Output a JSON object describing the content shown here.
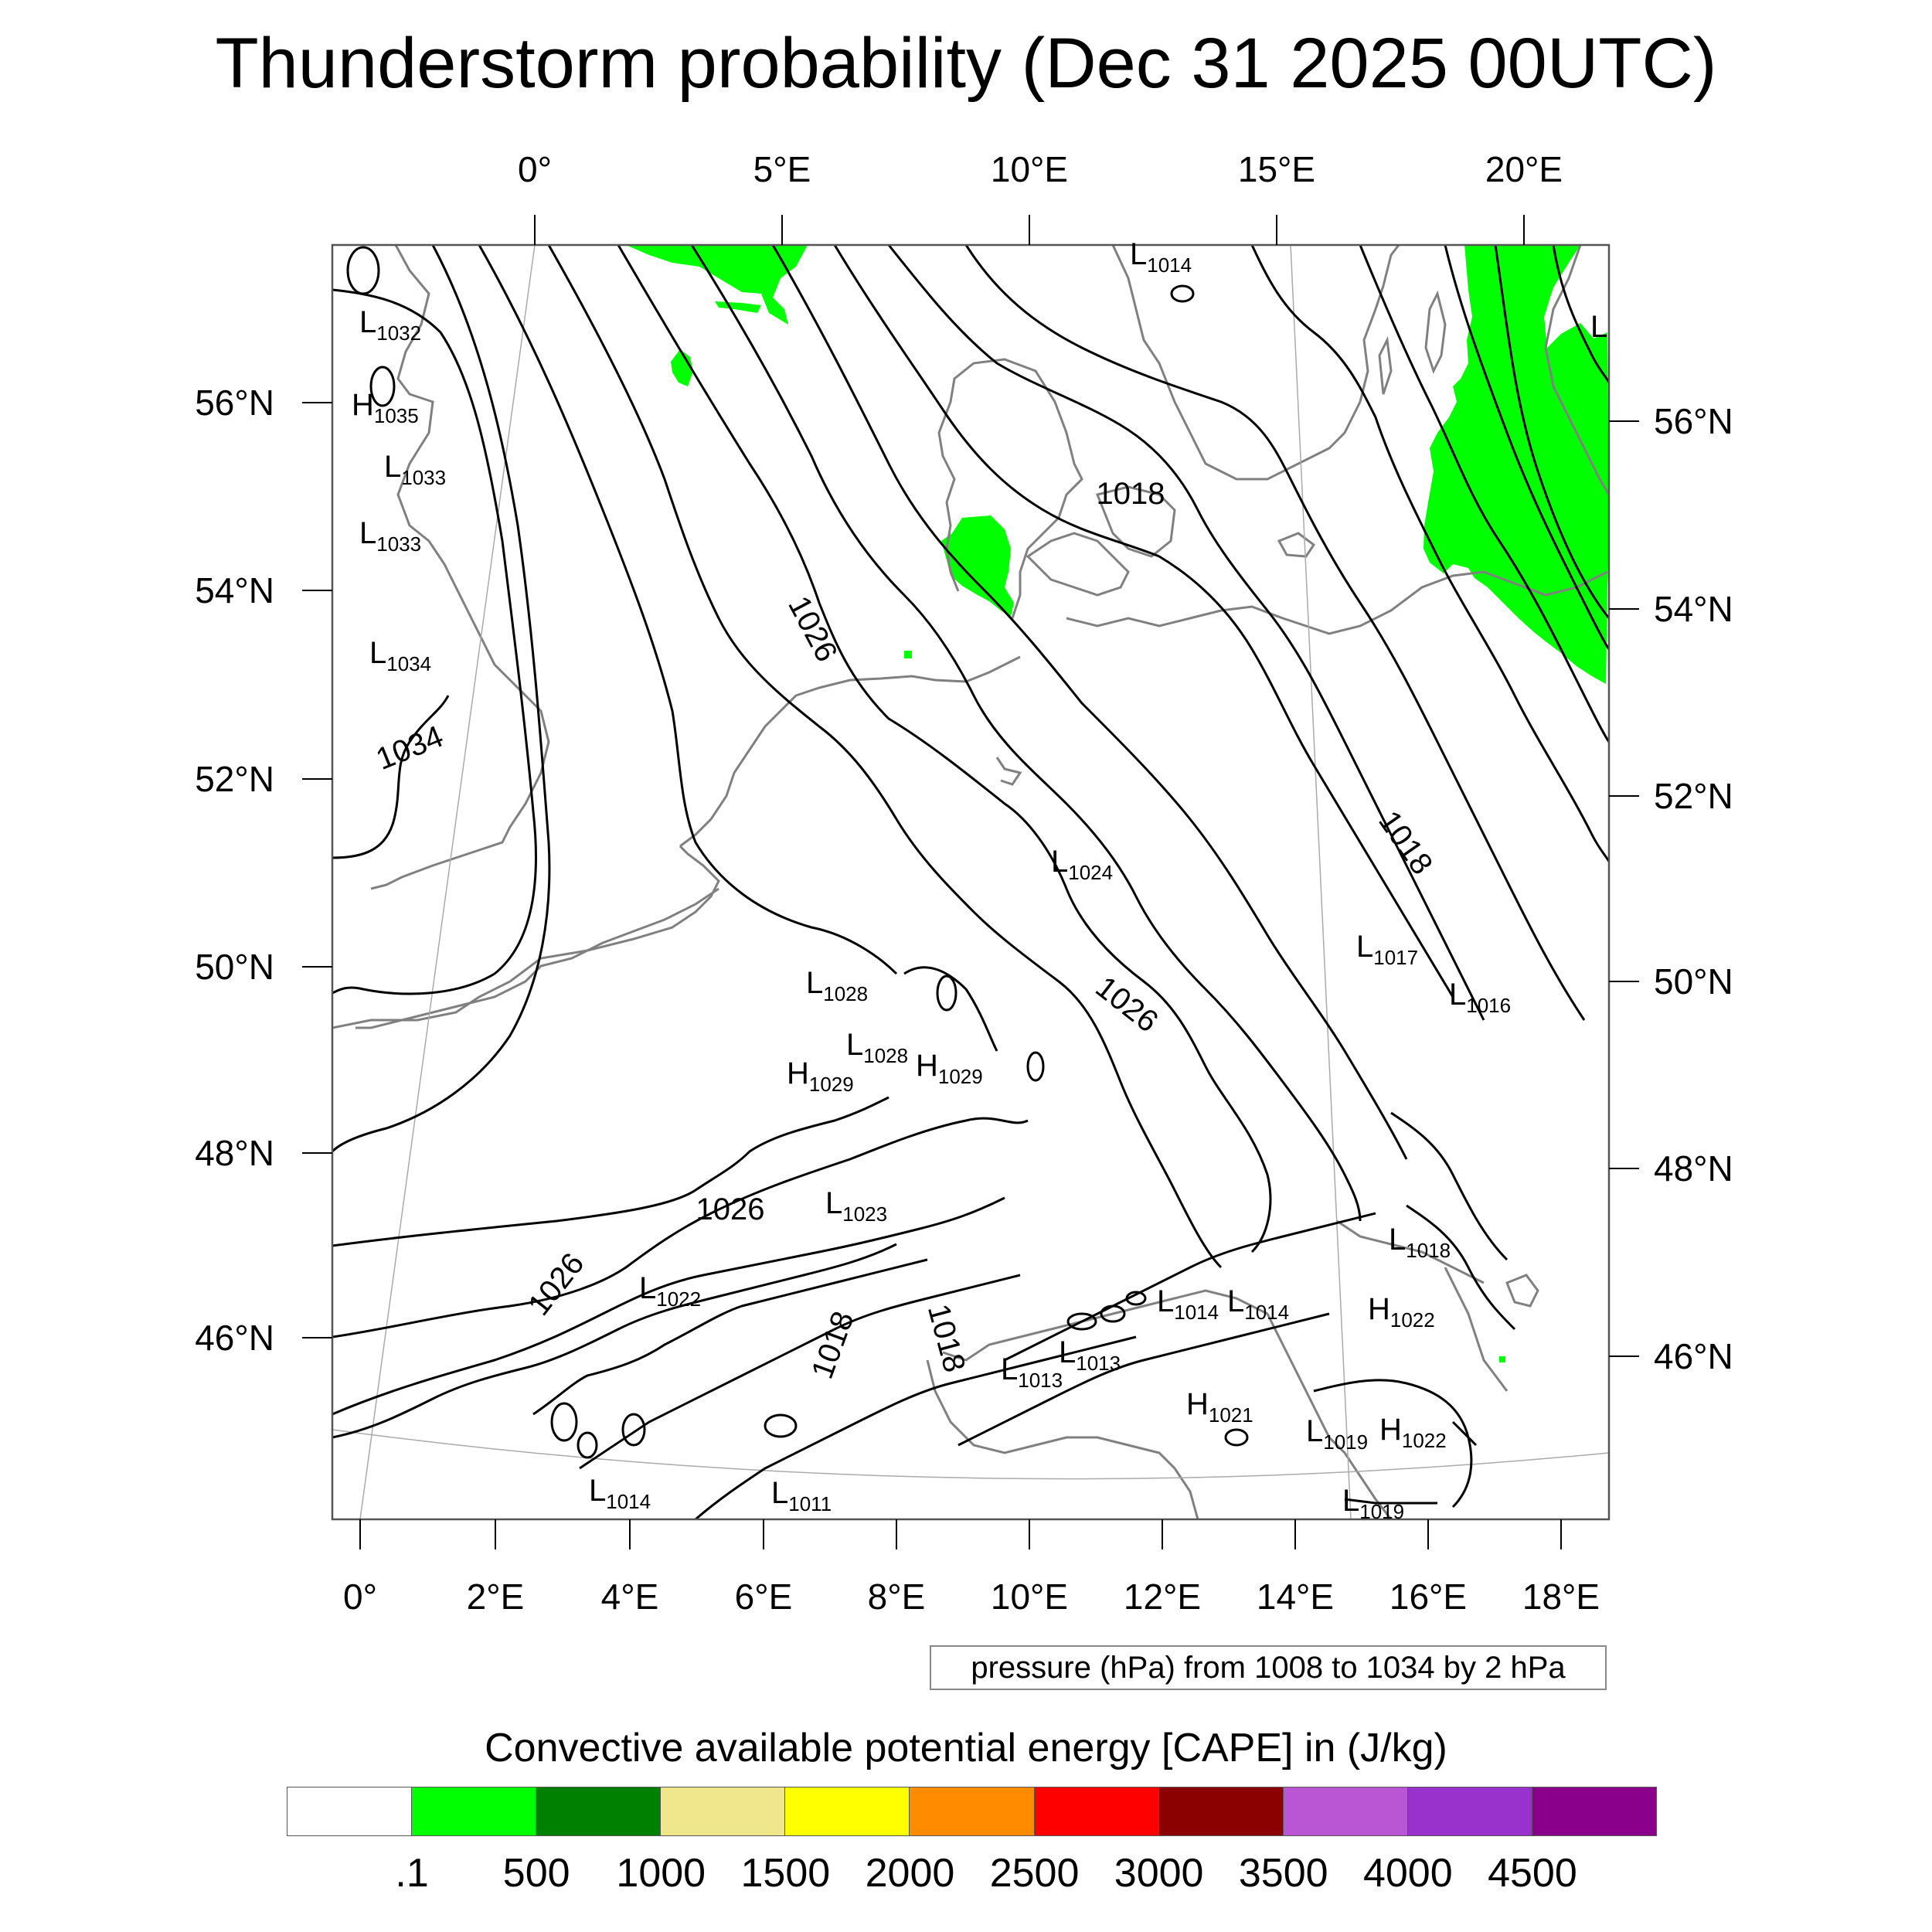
{
  "title": "Thunderstorm probability (Dec 31 2025 00UTC)",
  "top_axis_labels": [
    "0°",
    "5°E",
    "10°E",
    "15°E",
    "20°E"
  ],
  "left_axis_labels": [
    "56°N",
    "54°N",
    "52°N",
    "50°N",
    "48°N",
    "46°N"
  ],
  "right_axis_labels": [
    "56°N",
    "54°N",
    "52°N",
    "50°N",
    "48°N",
    "46°N"
  ],
  "bottom_axis_labels": [
    "0°",
    "2°E",
    "4°E",
    "6°E",
    "8°E",
    "10°E",
    "12°E",
    "14°E",
    "16°E",
    "18°E"
  ],
  "contour_note": "pressure (hPa) from 1008 to 1034 by 2 hPa",
  "colorbar": {
    "title": "Convective available potential energy [CAPE] in (J/kg)",
    "colors": [
      "#ffffff",
      "#00ff00",
      "#008000",
      "#f0e68c",
      "#ffff00",
      "#ff8c00",
      "#ff0000",
      "#8b0000",
      "#ba55d3",
      "#9932cc",
      "#8b008b"
    ],
    "labels": [
      ".1",
      "500",
      "1000",
      "1500",
      "2000",
      "2500",
      "3000",
      "3500",
      "4000",
      "4500"
    ]
  },
  "isobar_labels": [
    "1026",
    "1034",
    "1018",
    "1018",
    "1026",
    "1026",
    "1026",
    "1018",
    "1018"
  ],
  "pressure_centers": [
    {
      "type": "L",
      "value": "1014"
    },
    {
      "type": "L",
      "value": "1032"
    },
    {
      "type": "H",
      "value": "1035"
    },
    {
      "type": "L",
      "value": "1033"
    },
    {
      "type": "L",
      "value": "1033"
    },
    {
      "type": "L",
      "value": "1034"
    },
    {
      "type": "L",
      "value": "1024"
    },
    {
      "type": "L",
      "value": "1017"
    },
    {
      "type": "L",
      "value": "1016"
    },
    {
      "type": "L",
      "value": "1028"
    },
    {
      "type": "L",
      "value": "1028"
    },
    {
      "type": "H",
      "value": "1029"
    },
    {
      "type": "H",
      "value": "1029"
    },
    {
      "type": "L",
      "value": "1023"
    },
    {
      "type": "L",
      "value": "1018"
    },
    {
      "type": "L",
      "value": "1022"
    },
    {
      "type": "L",
      "value": "1014"
    },
    {
      "type": "L",
      "value": "1014"
    },
    {
      "type": "H",
      "value": "1022"
    },
    {
      "type": "L",
      "value": "1013"
    },
    {
      "type": "L",
      "value": "1013"
    },
    {
      "type": "H",
      "value": "1021"
    },
    {
      "type": "L",
      "value": "1019"
    },
    {
      "type": "H",
      "value": "1022"
    },
    {
      "type": "L",
      "value": "1014"
    },
    {
      "type": "L",
      "value": "1011"
    },
    {
      "type": "L",
      "value": "1019"
    }
  ],
  "partial_label": "L"
}
